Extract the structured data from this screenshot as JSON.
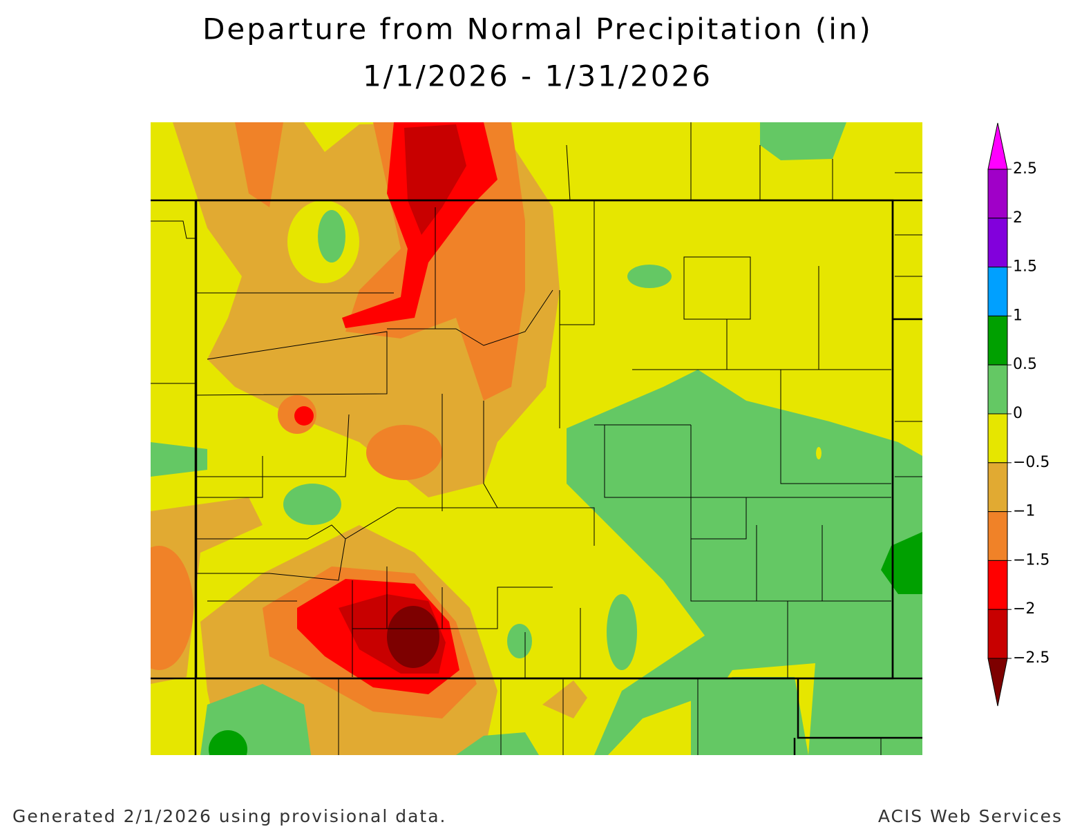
{
  "header": {
    "title": "Departure from Normal Precipitation (in)",
    "subtitle": "1/1/2026 - 1/31/2026"
  },
  "legend": {
    "colors": [
      "#ff00ff",
      "#a000c8",
      "#8200dc",
      "#00a0ff",
      "#00a000",
      "#64c864",
      "#e6e600",
      "#e1aa32",
      "#f08228",
      "#ff0000",
      "#c80000",
      "#7d0000"
    ],
    "labels": [
      "2.5",
      "2",
      "1.5",
      "1",
      "0.5",
      "0",
      "−0.5",
      "−1",
      "−1.5",
      "−2",
      "−2.5"
    ]
  },
  "footer": {
    "left": "Generated 2/1/2026 using provisional data.",
    "right": "ACIS Web Services"
  }
}
